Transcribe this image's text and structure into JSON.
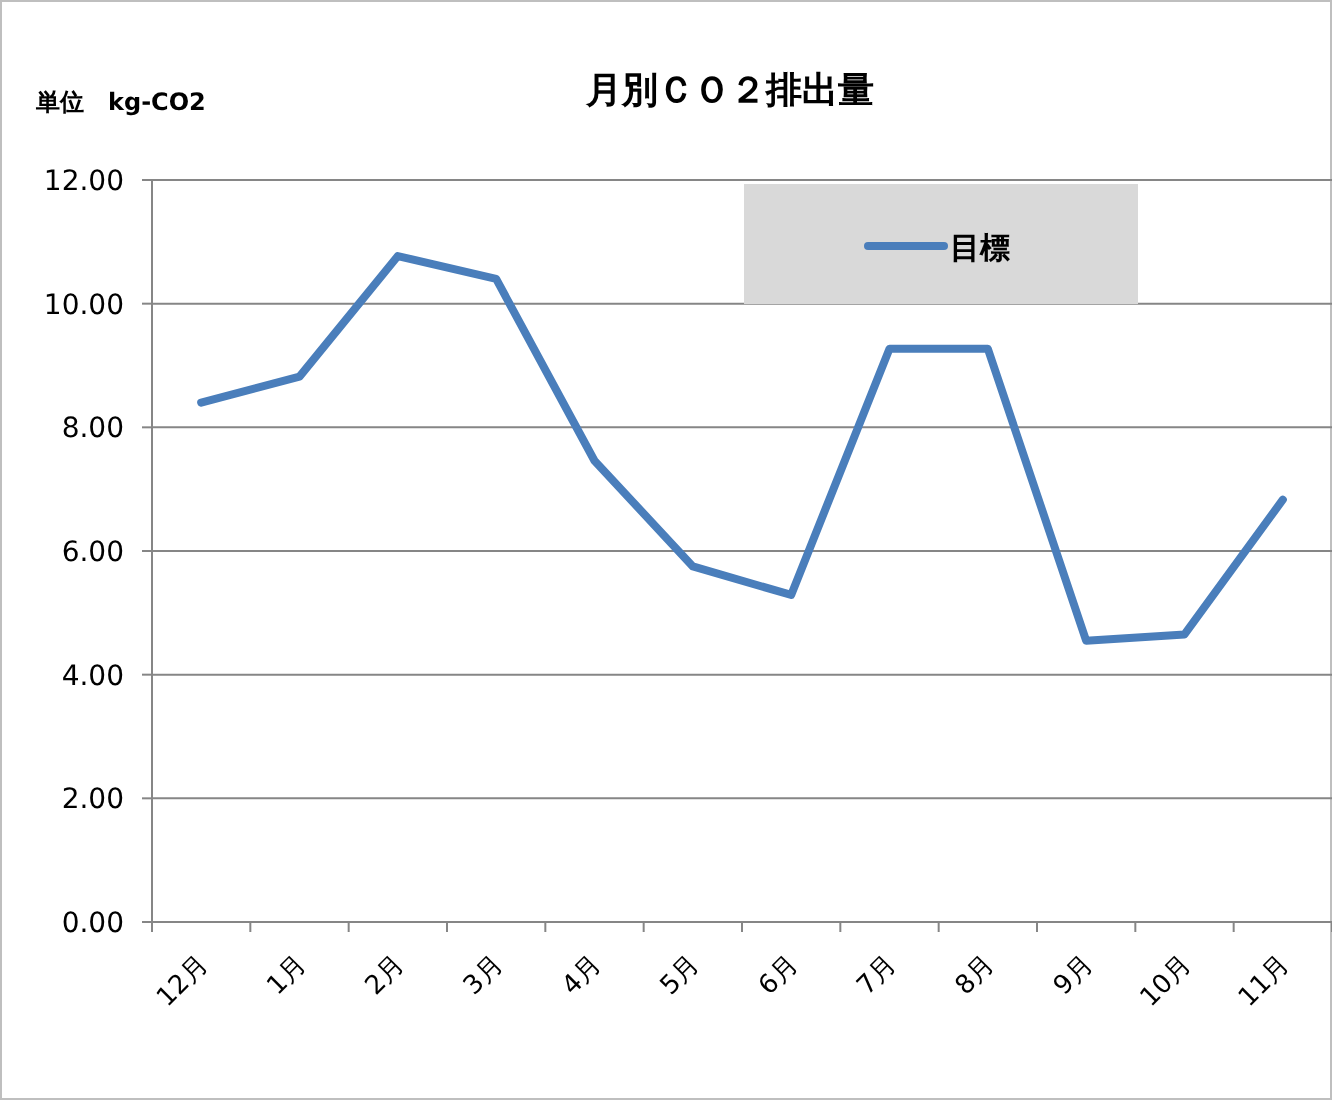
{
  "chart_data": {
    "type": "line",
    "title": "月別ＣＯ２排出量",
    "ylabel": "単位　kg-CO2",
    "categories": [
      "12月",
      "1月",
      "2月",
      "3月",
      "4月",
      "5月",
      "6月",
      "7月",
      "8月",
      "9月",
      "10月",
      "11月"
    ],
    "series": [
      {
        "name": "目標",
        "color": "#4a7ebb",
        "values": [
          8.4,
          8.82,
          10.77,
          10.4,
          7.46,
          5.75,
          5.29,
          9.27,
          9.27,
          4.55,
          4.65,
          6.83
        ]
      }
    ],
    "ylim": [
      0,
      12
    ],
    "yticks": [
      {
        "value": 0,
        "label": "0.00"
      },
      {
        "value": 2,
        "label": "2.00"
      },
      {
        "value": 4,
        "label": "4.00"
      },
      {
        "value": 6,
        "label": "6.00"
      },
      {
        "value": 8,
        "label": "8.00"
      },
      {
        "value": 10,
        "label": "10.00"
      },
      {
        "value": 12,
        "label": "12.00"
      }
    ],
    "grid": "y",
    "legend": "top right",
    "marker": "none",
    "line_style": "solid"
  }
}
